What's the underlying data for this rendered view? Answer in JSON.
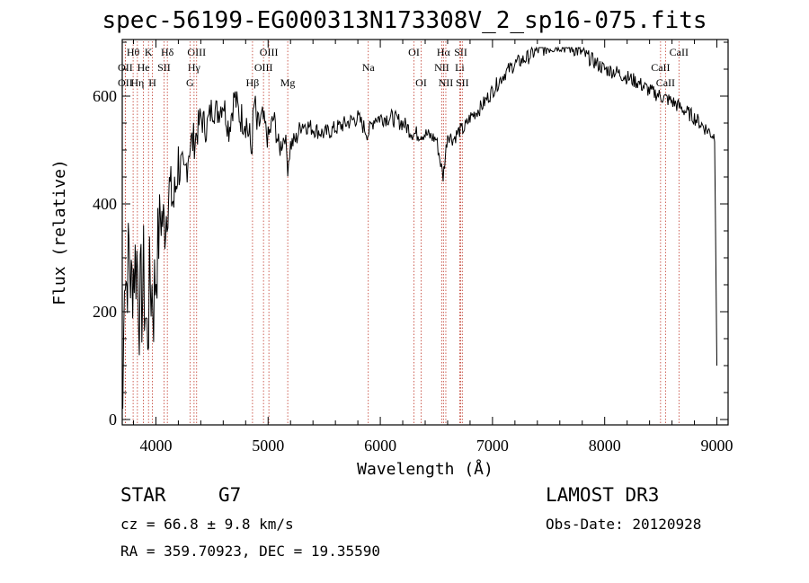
{
  "chart_data": {
    "type": "line",
    "title": "spec-56199-EG000313N173308V_2_sp16-075.fits",
    "xlabel": "Wavelength (Å)",
    "ylabel": "Flux (relative)",
    "xlim": [
      3700,
      9100
    ],
    "ylim": [
      -10,
      705
    ],
    "x_ticks": [
      4000,
      5000,
      6000,
      7000,
      8000,
      9000
    ],
    "x_tick_labels": [
      "4000",
      "5000",
      "6000",
      "7000",
      "8000",
      "9000"
    ],
    "y_ticks": [
      0,
      200,
      400,
      600
    ],
    "y_tick_labels": [
      "0",
      "200",
      "400",
      "600"
    ],
    "series": [
      {
        "name": "flux",
        "x": [
          3705,
          3720,
          3740,
          3760,
          3780,
          3800,
          3830,
          3860,
          3890,
          3920,
          3950,
          3980,
          4010,
          4040,
          4080,
          4120,
          4160,
          4200,
          4250,
          4300,
          4350,
          4400,
          4450,
          4500,
          4550,
          4600,
          4650,
          4700,
          4750,
          4800,
          4850,
          4880,
          4900,
          4950,
          5000,
          5050,
          5100,
          5150,
          5175,
          5200,
          5250,
          5300,
          5400,
          5500,
          5600,
          5700,
          5800,
          5890,
          5950,
          6000,
          6100,
          6200,
          6300,
          6400,
          6500,
          6560,
          6600,
          6650,
          6700,
          6750,
          6800,
          6900,
          7000,
          7100,
          7200,
          7300,
          7400,
          7500,
          7600,
          7700,
          7800,
          7900,
          8000,
          8100,
          8200,
          8300,
          8400,
          8500,
          8600,
          8700,
          8800,
          8900,
          8980,
          9000
        ],
        "values": [
          20,
          300,
          250,
          320,
          240,
          280,
          300,
          200,
          260,
          150,
          260,
          220,
          300,
          380,
          360,
          430,
          400,
          480,
          440,
          510,
          520,
          560,
          540,
          580,
          570,
          590,
          540,
          600,
          560,
          560,
          500,
          590,
          540,
          560,
          520,
          560,
          500,
          530,
          470,
          510,
          520,
          550,
          540,
          530,
          540,
          550,
          560,
          530,
          560,
          560,
          560,
          550,
          530,
          530,
          520,
          450,
          530,
          520,
          535,
          540,
          560,
          580,
          610,
          640,
          660,
          670,
          685,
          690,
          695,
          690,
          680,
          665,
          650,
          645,
          635,
          625,
          610,
          600,
          590,
          575,
          560,
          540,
          525,
          100
        ],
        "noise_amplitude": [
          0,
          80,
          90,
          90,
          100,
          90,
          110,
          120,
          110,
          110,
          110,
          110,
          90,
          70,
          60,
          55,
          55,
          55,
          45,
          40,
          35,
          30,
          30,
          28,
          28,
          28,
          30,
          30,
          30,
          40,
          40,
          35,
          30,
          25,
          25,
          25,
          22,
          20,
          20,
          20,
          18,
          18,
          16,
          16,
          16,
          16,
          16,
          16,
          16,
          16,
          16,
          16,
          16,
          14,
          14,
          14,
          14,
          14,
          14,
          14,
          14,
          14,
          14,
          14,
          14,
          14,
          14,
          14,
          14,
          14,
          14,
          14,
          14,
          14,
          14,
          14,
          14,
          14,
          14,
          14,
          14,
          14,
          14,
          0
        ]
      }
    ],
    "line_markers": [
      {
        "label": "Hθ",
        "x": 3797,
        "row": 1
      },
      {
        "label": "K",
        "x": 3934,
        "row": 1
      },
      {
        "label": "Hδ",
        "x": 4102,
        "row": 1
      },
      {
        "label": "OII",
        "x": 3727,
        "row": 2
      },
      {
        "label": "He",
        "x": 3889,
        "row": 2
      },
      {
        "label": "SII",
        "x": 4072,
        "row": 2
      },
      {
        "label": "OII",
        "x": 3727,
        "row": 3
      },
      {
        "label": "Hη",
        "x": 3835,
        "row": 3
      },
      {
        "label": "H",
        "x": 3969,
        "row": 3
      },
      {
        "label": "OIII",
        "x": 4363,
        "row": 1
      },
      {
        "label": "Hγ",
        "x": 4340,
        "row": 2
      },
      {
        "label": "G",
        "x": 4304,
        "row": 3
      },
      {
        "label": "OIII",
        "x": 5007,
        "row": 1
      },
      {
        "label": "OIII",
        "x": 4959,
        "row": 2
      },
      {
        "label": "Hβ",
        "x": 4861,
        "row": 3
      },
      {
        "label": "Mg",
        "x": 5175,
        "row": 3
      },
      {
        "label": "Na",
        "x": 5893,
        "row": 2
      },
      {
        "label": "OI",
        "x": 6300,
        "row": 1
      },
      {
        "label": "OI",
        "x": 6364,
        "row": 3
      },
      {
        "label": "Hα",
        "x": 6563,
        "row": 1
      },
      {
        "label": "SII",
        "x": 6717,
        "row": 1
      },
      {
        "label": "NII",
        "x": 6548,
        "row": 2
      },
      {
        "label": "Li",
        "x": 6708,
        "row": 2
      },
      {
        "label": "NII",
        "x": 6584,
        "row": 3
      },
      {
        "label": "SII",
        "x": 6731,
        "row": 3
      },
      {
        "label": "CaII",
        "x": 8662,
        "row": 1
      },
      {
        "label": "CaII",
        "x": 8498,
        "row": 2
      },
      {
        "label": "CaII",
        "x": 8542,
        "row": 3
      }
    ]
  },
  "info": {
    "object_class": "STAR",
    "subclass": "G7",
    "survey": "LAMOST DR3",
    "redshift": "cz = 66.8 ± 9.8 km/s",
    "obs_date": "Obs-Date: 20120928",
    "coords": "RA = 359.70923, DEC =  19.35590"
  }
}
